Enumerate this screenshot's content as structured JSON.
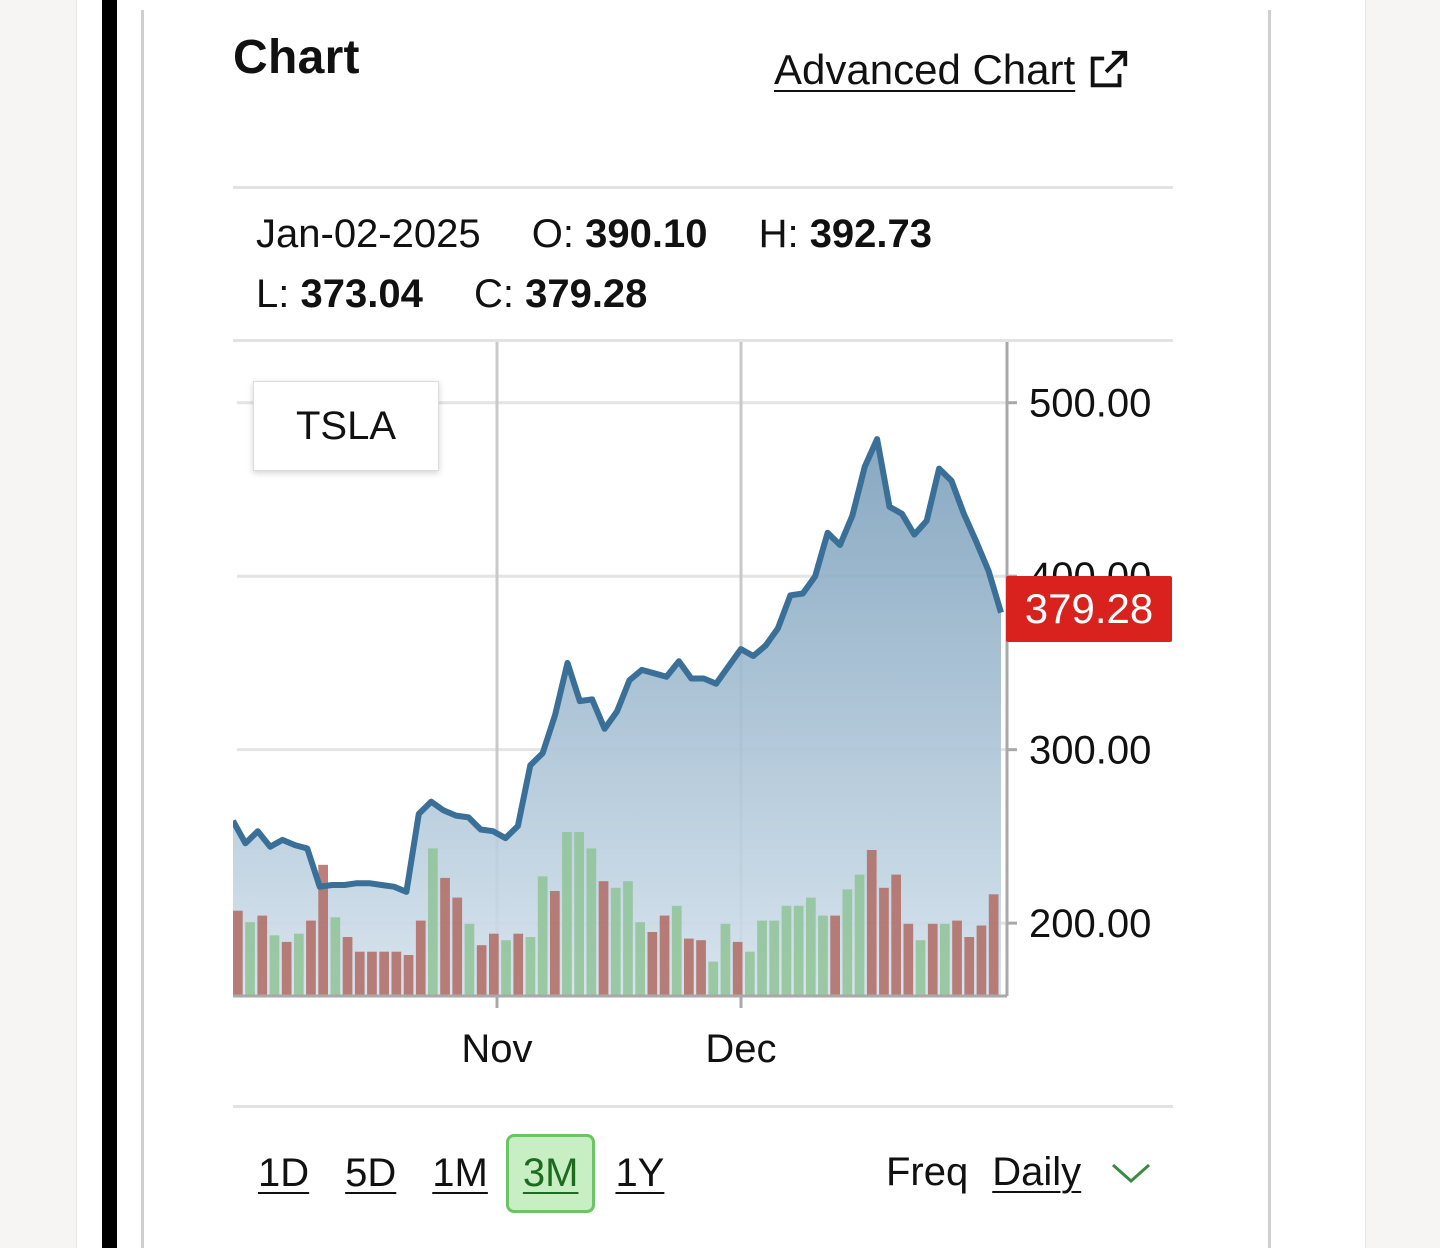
{
  "header": {
    "title": "Chart",
    "advanced_chart_label": "Advanced Chart "
  },
  "ohlc": {
    "date": "Jan-02-2025",
    "open_label": "O:",
    "open": "390.10",
    "high_label": "H:",
    "high": "392.73",
    "low_label": "L:",
    "low": "373.04",
    "close_label": "C:",
    "close": "379.28"
  },
  "ticker": "TSLA",
  "last_price": "379.28",
  "ranges": [
    {
      "label": "1D",
      "active": false
    },
    {
      "label": "5D",
      "active": false
    },
    {
      "label": "1M",
      "active": false
    },
    {
      "label": "3M",
      "active": true
    },
    {
      "label": "1Y",
      "active": false
    }
  ],
  "freq": {
    "label": "Freq",
    "value": "Daily"
  },
  "colors": {
    "line": "#3a6f97",
    "area_top": "#7b9fbb",
    "area_bottom": "#d3e1ec",
    "volume_up": "#8fc397",
    "volume_down": "#b06a63",
    "last_price_bg": "#d9211e",
    "active_range_bg": "#c8efc4"
  },
  "icons": {
    "advanced_chart": "external-link-icon",
    "freq_dropdown": "chevron-down-icon"
  },
  "chart_data": {
    "type": "area",
    "series_name": "TSLA",
    "x_tick_labels": [
      "Nov",
      "Dec"
    ],
    "y_ticks": [
      "200.00",
      "300.00",
      "400.00",
      "500.00"
    ],
    "ylim": [
      158,
      535
    ],
    "grid": true,
    "close": [
      259,
      246,
      253,
      244,
      248,
      245,
      243,
      221,
      222,
      222,
      223,
      223,
      222,
      221,
      218,
      263,
      270,
      265,
      262,
      261,
      254,
      253,
      249,
      256,
      291,
      298,
      320,
      350,
      328,
      329,
      312,
      322,
      340,
      346,
      344,
      342,
      351,
      341,
      341,
      338,
      348,
      358,
      354,
      360,
      370,
      389,
      390,
      400,
      425,
      418,
      435,
      463,
      479,
      440,
      436,
      424,
      432,
      462,
      455,
      436,
      420,
      403,
      379
    ],
    "volume_rel": [
      0.52,
      0.45,
      0.49,
      0.37,
      0.33,
      0.38,
      0.46,
      0.8,
      0.48,
      0.36,
      0.27,
      0.27,
      0.27,
      0.27,
      0.25,
      0.46,
      0.9,
      0.72,
      0.6,
      0.44,
      0.31,
      0.38,
      0.34,
      0.38,
      0.36,
      0.73,
      0.64,
      1.0,
      1.0,
      0.9,
      0.7,
      0.66,
      0.7,
      0.45,
      0.39,
      0.49,
      0.55,
      0.35,
      0.34,
      0.21,
      0.44,
      0.33,
      0.27,
      0.46,
      0.46,
      0.55,
      0.55,
      0.6,
      0.49,
      0.49,
      0.65,
      0.74,
      0.89,
      0.66,
      0.74,
      0.44,
      0.34,
      0.44,
      0.44,
      0.46,
      0.36,
      0.43,
      0.62
    ],
    "volume_up": [
      false,
      true,
      false,
      true,
      false,
      true,
      false,
      false,
      true,
      false,
      false,
      false,
      false,
      false,
      false,
      false,
      true,
      false,
      false,
      true,
      false,
      false,
      true,
      false,
      true,
      true,
      false,
      true,
      true,
      true,
      false,
      true,
      true,
      true,
      false,
      false,
      true,
      false,
      false,
      true,
      true,
      false,
      true,
      true,
      true,
      true,
      true,
      true,
      true,
      false,
      true,
      true,
      false,
      false,
      false,
      false,
      true,
      false,
      true,
      false,
      false,
      false,
      false
    ]
  }
}
